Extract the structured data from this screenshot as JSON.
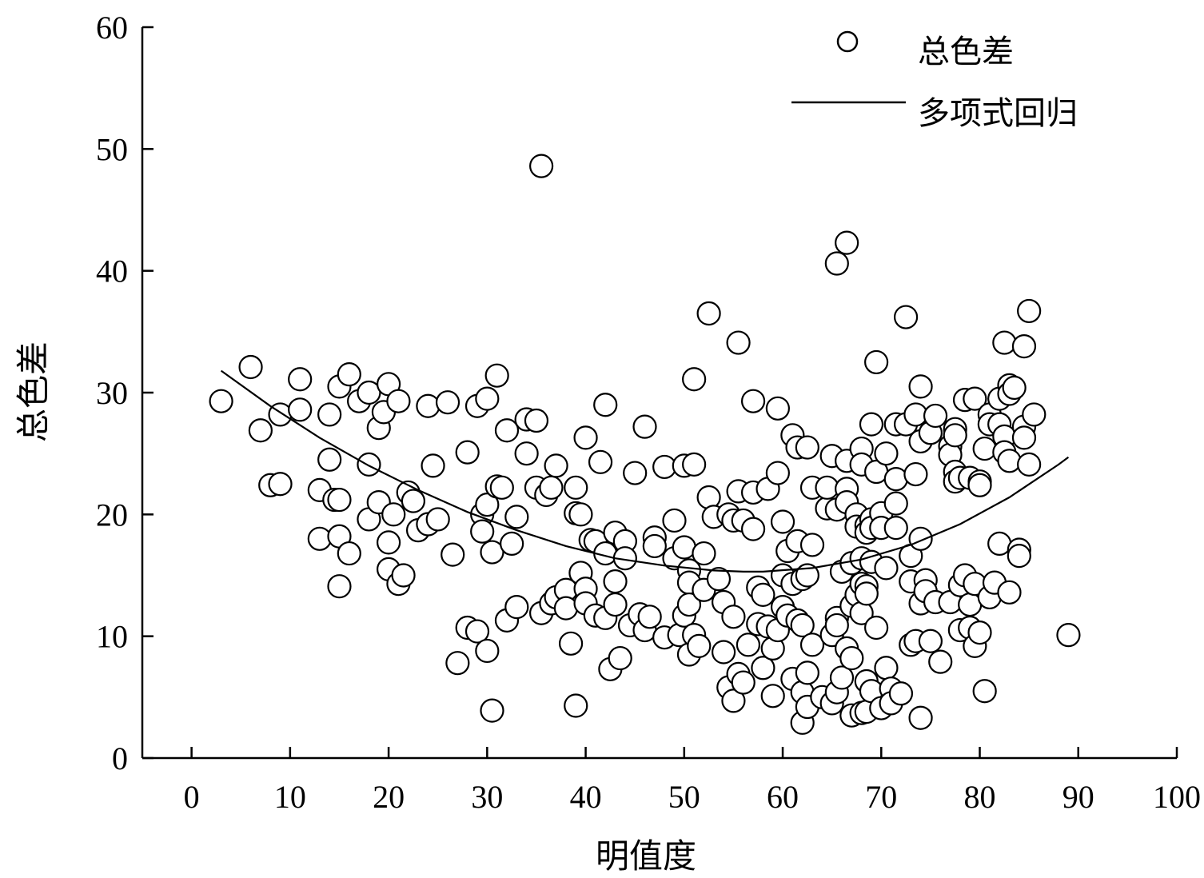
{
  "chart_data": {
    "type": "scatter",
    "xlabel": "明值度",
    "ylabel": "总色差",
    "xlim": [
      -5,
      100
    ],
    "ylim": [
      0,
      60
    ],
    "xticks": [
      0,
      10,
      20,
      30,
      40,
      50,
      60,
      70,
      80,
      90,
      100
    ],
    "yticks": [
      0,
      10,
      20,
      30,
      40,
      50,
      60
    ],
    "grid": false,
    "legend_position": "top-right",
    "legend": {
      "scatter_label": "总色差",
      "line_label": "多项式回归"
    },
    "series": [
      {
        "name": "总色差",
        "kind": "scatter",
        "points": [
          [
            3,
            29.3
          ],
          [
            6,
            32.1
          ],
          [
            7,
            26.9
          ],
          [
            8,
            22.4
          ],
          [
            9,
            28.2
          ],
          [
            9,
            22.5
          ],
          [
            11,
            31.1
          ],
          [
            11,
            28.6
          ],
          [
            13,
            22
          ],
          [
            13,
            18
          ],
          [
            14,
            28.2
          ],
          [
            14,
            24.5
          ],
          [
            14.5,
            21.2
          ],
          [
            15,
            30.5
          ],
          [
            15,
            21.2
          ],
          [
            15,
            18.2
          ],
          [
            15,
            14.1
          ],
          [
            16,
            31.5
          ],
          [
            16,
            16.8
          ],
          [
            17,
            29.3
          ],
          [
            18,
            30
          ],
          [
            18,
            24.1
          ],
          [
            18,
            19.6
          ],
          [
            19,
            27.1
          ],
          [
            19,
            21
          ],
          [
            19.5,
            28.4
          ],
          [
            20,
            30.7
          ],
          [
            20,
            17.7
          ],
          [
            20,
            15.5
          ],
          [
            20.5,
            20
          ],
          [
            21,
            29.3
          ],
          [
            21,
            14.3
          ],
          [
            21.5,
            15
          ],
          [
            22,
            21.8
          ],
          [
            22.5,
            21.1
          ],
          [
            23,
            18.7
          ],
          [
            24,
            28.9
          ],
          [
            24,
            19.2
          ],
          [
            24.5,
            24
          ],
          [
            25,
            19.6
          ],
          [
            26,
            29.2
          ],
          [
            26.5,
            16.7
          ],
          [
            27,
            7.8
          ],
          [
            28,
            25.1
          ],
          [
            28,
            10.7
          ],
          [
            29,
            10.4
          ],
          [
            29,
            28.9
          ],
          [
            29.5,
            20
          ],
          [
            29.5,
            18.6
          ],
          [
            30,
            29.5
          ],
          [
            30,
            20.8
          ],
          [
            30,
            8.8
          ],
          [
            30.5,
            16.9
          ],
          [
            30.5,
            3.9
          ],
          [
            31,
            31.4
          ],
          [
            31,
            22.3
          ],
          [
            31.5,
            22.2
          ],
          [
            32,
            26.9
          ],
          [
            32,
            11.3
          ],
          [
            32.5,
            17.6
          ],
          [
            33,
            19.8
          ],
          [
            33,
            12.4
          ],
          [
            34,
            25
          ],
          [
            34,
            27.8
          ],
          [
            35,
            27.7
          ],
          [
            35,
            22.2
          ],
          [
            35.5,
            11.9
          ],
          [
            35.5,
            48.6
          ],
          [
            36,
            21.6
          ],
          [
            36.5,
            22.2
          ],
          [
            36.5,
            12.7
          ],
          [
            37,
            24
          ],
          [
            37,
            13.2
          ],
          [
            38,
            13.8
          ],
          [
            38,
            12.3
          ],
          [
            38.5,
            9.4
          ],
          [
            39,
            20.1
          ],
          [
            39,
            22.2
          ],
          [
            39,
            4.3
          ],
          [
            39.5,
            15.2
          ],
          [
            39.5,
            20
          ],
          [
            40,
            26.3
          ],
          [
            40,
            13.9
          ],
          [
            40,
            12.7
          ],
          [
            40.5,
            17.9
          ],
          [
            41,
            17.8
          ],
          [
            41,
            11.7
          ],
          [
            41.5,
            24.3
          ],
          [
            42,
            29
          ],
          [
            42,
            16.8
          ],
          [
            42,
            11.5
          ],
          [
            42.5,
            7.3
          ],
          [
            43,
            18.5
          ],
          [
            43,
            14.5
          ],
          [
            43,
            12.6
          ],
          [
            43.5,
            8.2
          ],
          [
            44,
            17.8
          ],
          [
            44,
            16.4
          ],
          [
            44.5,
            10.9
          ],
          [
            45,
            23.4
          ],
          [
            45.5,
            11.8
          ],
          [
            46,
            10.5
          ],
          [
            46,
            27.2
          ],
          [
            46.5,
            11.6
          ],
          [
            47,
            18.1
          ],
          [
            47,
            17.4
          ],
          [
            48,
            23.9
          ],
          [
            48,
            9.9
          ],
          [
            49,
            16.4
          ],
          [
            49,
            19.5
          ],
          [
            49.5,
            10.1
          ],
          [
            50,
            24
          ],
          [
            50,
            17.3
          ],
          [
            50,
            11.7
          ],
          [
            50.5,
            15.4
          ],
          [
            50.5,
            14.4
          ],
          [
            50.5,
            12.6
          ],
          [
            50.5,
            8.5
          ],
          [
            51,
            24.1
          ],
          [
            51,
            31.1
          ],
          [
            51,
            10.1
          ],
          [
            51.5,
            9.2
          ],
          [
            52,
            13.8
          ],
          [
            52,
            16.8
          ],
          [
            52.5,
            36.5
          ],
          [
            52.5,
            21.4
          ],
          [
            53,
            19.8
          ],
          [
            53.5,
            14.7
          ],
          [
            54,
            12.8
          ],
          [
            54,
            8.7
          ],
          [
            54.5,
            20
          ],
          [
            54.5,
            5.8
          ],
          [
            55,
            19.5
          ],
          [
            55,
            11.6
          ],
          [
            55,
            4.7
          ],
          [
            55.5,
            34.1
          ],
          [
            55.5,
            21.9
          ],
          [
            55.5,
            6.9
          ],
          [
            56,
            19.5
          ],
          [
            56,
            6.2
          ],
          [
            56.5,
            9.3
          ],
          [
            57,
            29.3
          ],
          [
            57,
            21.8
          ],
          [
            57,
            18.8
          ],
          [
            57.5,
            14
          ],
          [
            57.5,
            11
          ],
          [
            58,
            7.4
          ],
          [
            58,
            13.4
          ],
          [
            58.5,
            22.1
          ],
          [
            58.5,
            10.8
          ],
          [
            59,
            9
          ],
          [
            59,
            5.1
          ],
          [
            59.5,
            23.4
          ],
          [
            59.5,
            10.5
          ],
          [
            59.5,
            28.7
          ],
          [
            60,
            19.4
          ],
          [
            60,
            15
          ],
          [
            60,
            12.4
          ],
          [
            60.5,
            17
          ],
          [
            60.5,
            11.7
          ],
          [
            61,
            26.5
          ],
          [
            61,
            14.3
          ],
          [
            61,
            6.5
          ],
          [
            61.5,
            25.5
          ],
          [
            61.5,
            17.8
          ],
          [
            61.5,
            11.3
          ],
          [
            62,
            14.7
          ],
          [
            62,
            10.9
          ],
          [
            62,
            5.4
          ],
          [
            62,
            2.9
          ],
          [
            62.5,
            25.5
          ],
          [
            62.5,
            15
          ],
          [
            62.5,
            7
          ],
          [
            62.5,
            4.2
          ],
          [
            63,
            22.2
          ],
          [
            63,
            17.5
          ],
          [
            63,
            9.3
          ],
          [
            64,
            5
          ],
          [
            64.5,
            20.5
          ],
          [
            64.5,
            22.2
          ],
          [
            65,
            24.8
          ],
          [
            65,
            10.1
          ],
          [
            65,
            4.5
          ],
          [
            65.5,
            40.6
          ],
          [
            65.5,
            20.4
          ],
          [
            65.5,
            11.5
          ],
          [
            65.5,
            10.9
          ],
          [
            65.5,
            5.4
          ],
          [
            66,
            15.3
          ],
          [
            66,
            6.6
          ],
          [
            66.5,
            42.3
          ],
          [
            66.5,
            24.4
          ],
          [
            66.5,
            22.1
          ],
          [
            66.5,
            21
          ],
          [
            66.5,
            9
          ],
          [
            67,
            16
          ],
          [
            67,
            12.5
          ],
          [
            67,
            8.2
          ],
          [
            67,
            3.5
          ],
          [
            67.5,
            20
          ],
          [
            67.5,
            19
          ],
          [
            67.5,
            13.4
          ],
          [
            68,
            25.4
          ],
          [
            68,
            24.1
          ],
          [
            68,
            16.4
          ],
          [
            68,
            14.3
          ],
          [
            68,
            11.9
          ],
          [
            68,
            3.7
          ],
          [
            68.5,
            19.1
          ],
          [
            68.5,
            18.5
          ],
          [
            68.5,
            14.1
          ],
          [
            68.5,
            13.5
          ],
          [
            68.5,
            6.3
          ],
          [
            68.5,
            3.8
          ],
          [
            69,
            27.4
          ],
          [
            69,
            19.6
          ],
          [
            69,
            18.9
          ],
          [
            69,
            16.1
          ],
          [
            69,
            5.5
          ],
          [
            69.5,
            32.5
          ],
          [
            69.5,
            23.5
          ],
          [
            69.5,
            10.7
          ],
          [
            70,
            20.1
          ],
          [
            70,
            18.9
          ],
          [
            70,
            4.1
          ],
          [
            70.5,
            15.6
          ],
          [
            70.5,
            25
          ],
          [
            70.5,
            7.4
          ],
          [
            71,
            5.7
          ],
          [
            71,
            4.5
          ],
          [
            71.5,
            27.4
          ],
          [
            71.5,
            20.9
          ],
          [
            71.5,
            18.9
          ],
          [
            71.5,
            22.9
          ],
          [
            72,
            5.3
          ],
          [
            72.5,
            36.2
          ],
          [
            72.5,
            27.4
          ],
          [
            73,
            14.5
          ],
          [
            73,
            16.6
          ],
          [
            73,
            9.3
          ],
          [
            73.5,
            28.2
          ],
          [
            73.5,
            23.3
          ],
          [
            73.5,
            9.6
          ],
          [
            74,
            30.5
          ],
          [
            74,
            26
          ],
          [
            74,
            18
          ],
          [
            74,
            12.7
          ],
          [
            74,
            3.3
          ],
          [
            74.5,
            14.6
          ],
          [
            74.5,
            13.7
          ],
          [
            75,
            26.7
          ],
          [
            75,
            9.6
          ],
          [
            75.5,
            28.1
          ],
          [
            75.5,
            12.8
          ],
          [
            76,
            7.9
          ],
          [
            77,
            25.6
          ],
          [
            77,
            24.9
          ],
          [
            77,
            12.8
          ],
          [
            77.5,
            27
          ],
          [
            77.5,
            26.5
          ],
          [
            77.5,
            23.5
          ],
          [
            77.5,
            22.7
          ],
          [
            78,
            23
          ],
          [
            78,
            14.2
          ],
          [
            78,
            10.5
          ],
          [
            78.5,
            29.4
          ],
          [
            78.5,
            15
          ],
          [
            79,
            23
          ],
          [
            79,
            12.6
          ],
          [
            79,
            10.7
          ],
          [
            79.5,
            29.5
          ],
          [
            79.5,
            14.3
          ],
          [
            79.5,
            9.2
          ],
          [
            80,
            22.7
          ],
          [
            80,
            22.4
          ],
          [
            80,
            10.3
          ],
          [
            80.5,
            25.4
          ],
          [
            80.5,
            5.5
          ],
          [
            81,
            28.2
          ],
          [
            81,
            27.4
          ],
          [
            81,
            13.2
          ],
          [
            81.5,
            14.4
          ],
          [
            82,
            29.5
          ],
          [
            82,
            27.4
          ],
          [
            82,
            17.6
          ],
          [
            82.5,
            34.1
          ],
          [
            82.5,
            26.4
          ],
          [
            82.5,
            25.1
          ],
          [
            83,
            30.6
          ],
          [
            83,
            29.9
          ],
          [
            83,
            24.4
          ],
          [
            83,
            13.6
          ],
          [
            83.5,
            30.4
          ],
          [
            84,
            17.1
          ],
          [
            84,
            16.6
          ],
          [
            84.5,
            33.8
          ],
          [
            84.5,
            27.2
          ],
          [
            84.5,
            26.3
          ],
          [
            85,
            36.7
          ],
          [
            85,
            24.1
          ],
          [
            85.5,
            28.2
          ],
          [
            89,
            10.1
          ]
        ]
      },
      {
        "name": "多项式回归",
        "kind": "line",
        "points": [
          [
            3,
            31.8
          ],
          [
            8,
            28.9
          ],
          [
            13,
            26.3
          ],
          [
            18,
            24
          ],
          [
            23,
            22
          ],
          [
            28,
            20.2
          ],
          [
            33,
            18.7
          ],
          [
            38,
            17.4
          ],
          [
            43,
            16.4
          ],
          [
            48,
            15.8
          ],
          [
            53,
            15.4
          ],
          [
            56,
            15.3
          ],
          [
            58,
            15.3
          ],
          [
            63,
            15.6
          ],
          [
            68,
            16.3
          ],
          [
            73,
            17.5
          ],
          [
            78,
            19.2
          ],
          [
            83,
            21.4
          ],
          [
            88,
            24.1
          ],
          [
            89,
            24.7
          ]
        ]
      }
    ]
  }
}
